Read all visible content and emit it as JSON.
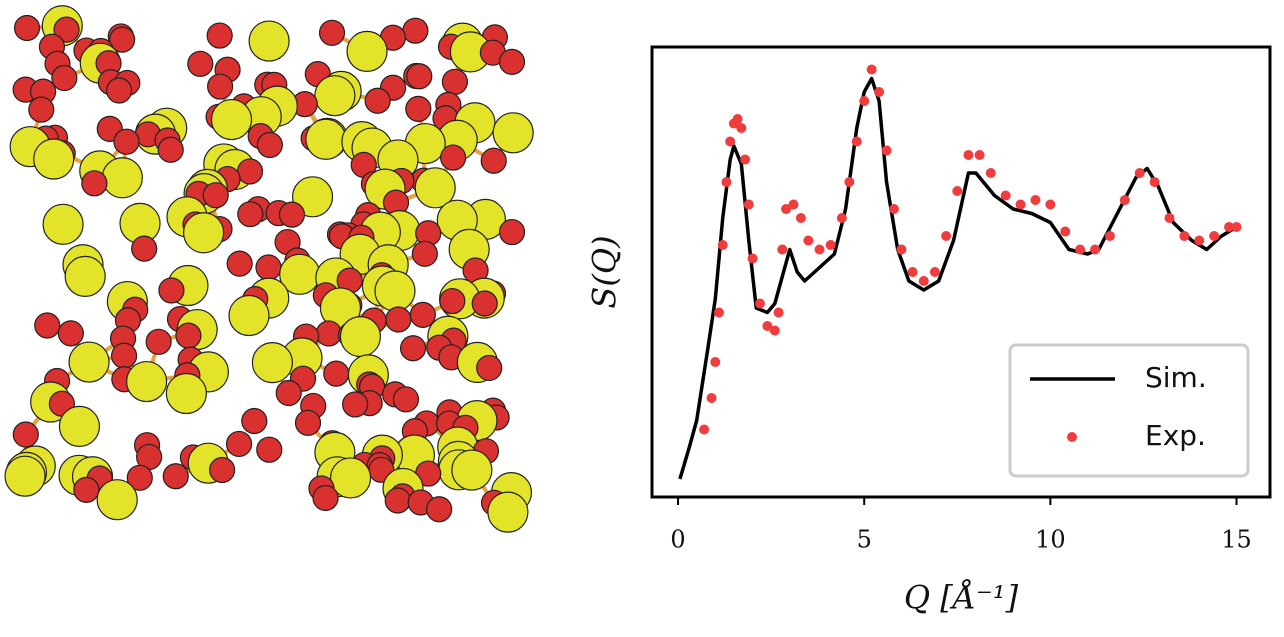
{
  "chart_data": {
    "type": "line",
    "xlabel": "Q [Å⁻¹]",
    "ylabel": "S(Q)",
    "xlim": [
      -0.7,
      15.9
    ],
    "ylim": [
      0,
      1
    ],
    "xticks": [
      0,
      5,
      10,
      15
    ],
    "legend": "lower right",
    "series": [
      {
        "name": "Sim.",
        "style": "line",
        "color": "#000000",
        "x": [
          0.05,
          0.3,
          0.5,
          0.8,
          1.0,
          1.2,
          1.4,
          1.5,
          1.7,
          1.9,
          2.1,
          2.4,
          2.6,
          2.8,
          3.0,
          3.2,
          3.4,
          3.8,
          4.2,
          4.5,
          4.8,
          5.0,
          5.2,
          5.4,
          5.6,
          5.9,
          6.2,
          6.6,
          7.0,
          7.4,
          7.8,
          8.0,
          8.5,
          9.0,
          9.5,
          10.0,
          10.5,
          11.0,
          11.3,
          11.8,
          12.3,
          12.6,
          12.9,
          13.3,
          13.8,
          14.2,
          14.6,
          15.0
        ],
        "values": [
          0.04,
          0.11,
          0.17,
          0.33,
          0.44,
          0.62,
          0.75,
          0.78,
          0.74,
          0.57,
          0.42,
          0.41,
          0.43,
          0.49,
          0.55,
          0.5,
          0.48,
          0.51,
          0.54,
          0.64,
          0.82,
          0.9,
          0.93,
          0.88,
          0.7,
          0.55,
          0.48,
          0.46,
          0.48,
          0.57,
          0.72,
          0.72,
          0.67,
          0.64,
          0.63,
          0.61,
          0.55,
          0.54,
          0.55,
          0.63,
          0.71,
          0.73,
          0.69,
          0.61,
          0.57,
          0.55,
          0.58,
          0.6
        ]
      },
      {
        "name": "Exp.",
        "style": "scatter",
        "color": "#f03c3c",
        "x": [
          0.7,
          0.9,
          1.0,
          1.1,
          1.2,
          1.3,
          1.4,
          1.5,
          1.6,
          1.7,
          1.8,
          1.9,
          2.0,
          2.2,
          2.4,
          2.6,
          2.7,
          2.8,
          2.9,
          3.1,
          3.3,
          3.5,
          3.8,
          4.1,
          4.4,
          4.6,
          4.8,
          5.0,
          5.2,
          5.4,
          5.6,
          5.8,
          6.0,
          6.3,
          6.6,
          6.9,
          7.2,
          7.5,
          7.8,
          8.1,
          8.4,
          8.8,
          9.2,
          9.6,
          10.0,
          10.4,
          10.8,
          11.2,
          11.6,
          12.0,
          12.4,
          12.8,
          13.2,
          13.6,
          14.0,
          14.4,
          14.8,
          15.0
        ],
        "values": [
          0.15,
          0.22,
          0.3,
          0.41,
          0.56,
          0.7,
          0.79,
          0.83,
          0.84,
          0.82,
          0.75,
          0.65,
          0.53,
          0.43,
          0.38,
          0.37,
          0.41,
          0.55,
          0.64,
          0.65,
          0.62,
          0.57,
          0.55,
          0.56,
          0.62,
          0.7,
          0.79,
          0.88,
          0.95,
          0.9,
          0.77,
          0.64,
          0.55,
          0.5,
          0.48,
          0.5,
          0.58,
          0.68,
          0.76,
          0.76,
          0.72,
          0.67,
          0.65,
          0.66,
          0.65,
          0.59,
          0.55,
          0.55,
          0.58,
          0.66,
          0.72,
          0.7,
          0.62,
          0.58,
          0.57,
          0.58,
          0.6,
          0.6
        ]
      }
    ]
  }
}
